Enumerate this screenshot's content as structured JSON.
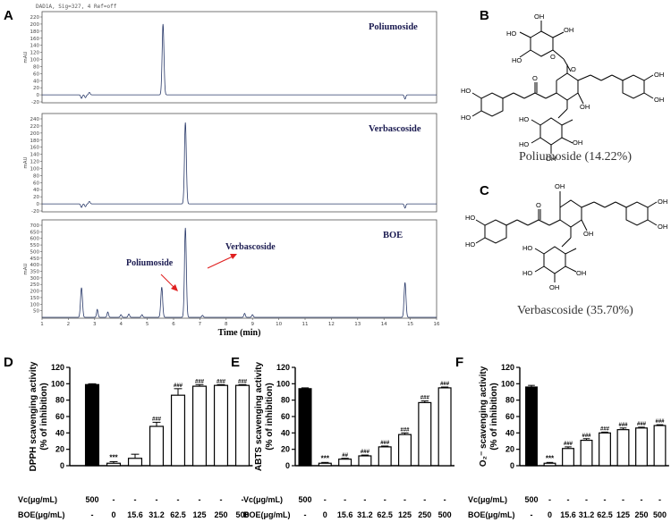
{
  "figure": {
    "header": "DAD1A, Sig=327, 4 Ref=off",
    "panel_labels": [
      "A",
      "B",
      "C",
      "D",
      "E",
      "F"
    ],
    "molecule_atoms": {
      "hydroxyl": "OH",
      "oxygen": "O",
      "ho": "HO"
    }
  },
  "captions": {
    "poliumoside": "Poliumoside (14.22%)",
    "verbascoside": "Verbascoside (35.70%)"
  },
  "chart_data": [
    {
      "type": "line",
      "panel": "A1",
      "title": "Poliumoside",
      "ylabel": "mAU",
      "xlabel": "",
      "xlim": [
        1,
        16
      ],
      "ylim": [
        -20,
        220
      ],
      "yticks": [
        -20,
        0,
        20,
        40,
        60,
        80,
        100,
        120,
        140,
        160,
        180,
        200,
        220
      ],
      "peaks": [
        {
          "x": 2.5,
          "h": -10
        },
        {
          "x": 2.65,
          "h": -8
        },
        {
          "x": 2.8,
          "h": 7
        },
        {
          "x": 5.6,
          "h": 200
        },
        {
          "x": 14.8,
          "h": -12
        }
      ]
    },
    {
      "type": "line",
      "panel": "A2",
      "title": "Verbascoside",
      "ylabel": "mAU",
      "xlabel": "",
      "xlim": [
        1,
        16
      ],
      "ylim": [
        -20,
        240
      ],
      "yticks": [
        -20,
        0,
        20,
        40,
        60,
        80,
        100,
        120,
        140,
        160,
        180,
        200,
        220,
        240
      ],
      "peaks": [
        {
          "x": 2.5,
          "h": -10
        },
        {
          "x": 2.65,
          "h": -8
        },
        {
          "x": 2.8,
          "h": 7
        },
        {
          "x": 6.45,
          "h": 230
        },
        {
          "x": 14.8,
          "h": -12
        }
      ]
    },
    {
      "type": "line",
      "panel": "A3",
      "title": "BOE",
      "ylabel": "mAU",
      "xlabel": "Time (min)",
      "xlim": [
        1,
        16
      ],
      "ylim": [
        0,
        700
      ],
      "yticks": [
        50,
        100,
        150,
        200,
        250,
        300,
        350,
        400,
        450,
        500,
        550,
        600,
        650,
        700
      ],
      "xticks": [
        1,
        2,
        3,
        4,
        5,
        6,
        7,
        8,
        9,
        10,
        11,
        12,
        13,
        14,
        15,
        16
      ],
      "annotations": [
        "Poliumoside",
        "Verbascoside"
      ],
      "peaks": [
        {
          "x": 2.5,
          "h": 225
        },
        {
          "x": 3.1,
          "h": 60
        },
        {
          "x": 3.5,
          "h": 40
        },
        {
          "x": 4.0,
          "h": 20
        },
        {
          "x": 4.3,
          "h": 25
        },
        {
          "x": 4.8,
          "h": 20
        },
        {
          "x": 5.55,
          "h": 230
        },
        {
          "x": 6.45,
          "h": 680
        },
        {
          "x": 7.1,
          "h": 15
        },
        {
          "x": 8.7,
          "h": 30
        },
        {
          "x": 9.0,
          "h": 20
        },
        {
          "x": 14.8,
          "h": 265
        }
      ]
    },
    {
      "type": "bar",
      "panel": "D",
      "ylabel": "DPPH scavenging activity\n(% of inhibition)",
      "ylim": [
        0,
        120
      ],
      "yticks": [
        0,
        20,
        40,
        60,
        80,
        100,
        120
      ],
      "categories": [
        "Vc 500",
        "0",
        "15.6",
        "31.2",
        "62.5",
        "125",
        "250",
        "500"
      ],
      "values": [
        99,
        3,
        9,
        48,
        86,
        97,
        98,
        98
      ],
      "errors": [
        1,
        2,
        5,
        5,
        8,
        2,
        1,
        1
      ],
      "significance": [
        "",
        "***",
        "",
        "###",
        "###",
        "###",
        "###",
        "###"
      ],
      "row_labels": [
        "Vc(μg/mL)",
        "BOE(μg/mL)"
      ],
      "vc_row": [
        "500",
        "-",
        "-",
        "-",
        "-",
        "-",
        "-",
        "-"
      ],
      "boe_row": [
        "-",
        "0",
        "15.6",
        "31.2",
        "62.5",
        "125",
        "250",
        "500"
      ]
    },
    {
      "type": "bar",
      "panel": "E",
      "ylabel": "ABTS scavenging activity\n(% of inhibition)",
      "ylim": [
        0,
        120
      ],
      "yticks": [
        0,
        20,
        40,
        60,
        80,
        100,
        120
      ],
      "categories": [
        "Vc 500",
        "0",
        "15.6",
        "31.2",
        "62.5",
        "125",
        "250",
        "500"
      ],
      "values": [
        94,
        3,
        8,
        12,
        23,
        38,
        77,
        95
      ],
      "errors": [
        1,
        1,
        1,
        1,
        1,
        2,
        2,
        1
      ],
      "significance": [
        "",
        "***",
        "##",
        "###",
        "###",
        "###",
        "###",
        "###"
      ],
      "row_labels": [
        "Vc(μg/mL)",
        "BOE(μg/mL)"
      ],
      "vc_row": [
        "500",
        "-",
        "-",
        "-",
        "-",
        "-",
        "-",
        "-"
      ],
      "boe_row": [
        "-",
        "0",
        "15.6",
        "31.2",
        "62.5",
        "125",
        "250",
        "500"
      ]
    },
    {
      "type": "bar",
      "panel": "F",
      "ylabel": "O₂⁻ scavenging activity\n(% of inhibition)",
      "ylim": [
        0,
        120
      ],
      "yticks": [
        0,
        20,
        40,
        60,
        80,
        100,
        120
      ],
      "categories": [
        "Vc 500",
        "0",
        "15.6",
        "31.2",
        "62.5",
        "125",
        "250",
        "500"
      ],
      "values": [
        96,
        3,
        21,
        31,
        40,
        44,
        46,
        49
      ],
      "errors": [
        2,
        1,
        2,
        2,
        1,
        2,
        1,
        1
      ],
      "significance": [
        "",
        "***",
        "###",
        "###",
        "###",
        "###",
        "###",
        "###"
      ],
      "row_labels": [
        "Vc(μg/mL)",
        "BOE(μg/mL)"
      ],
      "vc_row": [
        "500",
        "-",
        "-",
        "-",
        "-",
        "-",
        "-",
        "-"
      ],
      "boe_row": [
        "-",
        "0",
        "15.6",
        "31.2",
        "62.5",
        "125",
        "250",
        "500"
      ]
    }
  ]
}
